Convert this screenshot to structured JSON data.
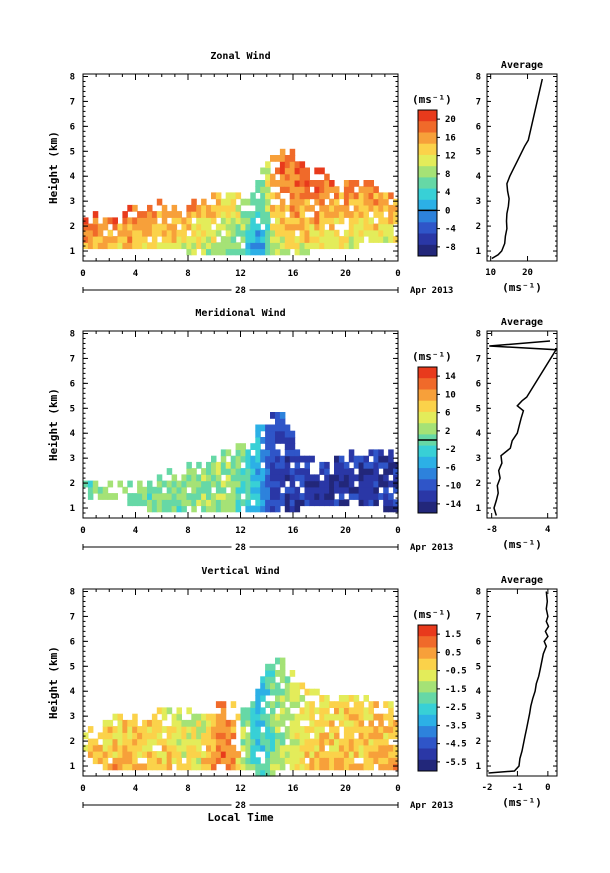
{
  "chart_data": [
    {
      "type": "heatmap",
      "title": "Zonal Wind",
      "xlabel": "",
      "ylabel": "Height (km)",
      "x_ticks": [
        "0",
        "4",
        "8",
        "12",
        "16",
        "20",
        "0"
      ],
      "xlim": [
        0,
        24
      ],
      "ylim": [
        0.6,
        8.1
      ],
      "y_ticks": [
        "1",
        "2",
        "3",
        "4",
        "5",
        "6",
        "7",
        "8"
      ],
      "date_label": "28",
      "month_label": "Apr 2013",
      "colorbar": {
        "unit": "(ms⁻¹)",
        "tick_labels": [
          "20",
          "16",
          "12",
          "8",
          "4",
          "0",
          "-4",
          "-8"
        ],
        "range": [
          -10,
          22
        ],
        "zero_line": 0,
        "colors": [
          "#e83a1c",
          "#f06a2a",
          "#f7a03a",
          "#fbd24a",
          "#e3ec5a",
          "#a5e276",
          "#66d8a6",
          "#38d0d6",
          "#2cb0e6",
          "#2d82dc",
          "#2f55c8",
          "#2a37a6",
          "#22277a"
        ]
      },
      "field": {
        "x_bins": 64,
        "y_bins": 30,
        "coverage": [
          [
            3.2,
            1.2,
            2.6
          ],
          [
            5.0,
            1.2,
            3.0
          ],
          [
            8.0,
            1.0,
            3.0
          ],
          [
            10.5,
            0.9,
            3.6
          ],
          [
            12.5,
            0.9,
            3.0
          ],
          [
            14.2,
            0.9,
            4.8
          ],
          [
            15.6,
            1.0,
            5.2
          ],
          [
            17.5,
            1.0,
            4.4
          ],
          [
            19.5,
            1.2,
            3.8
          ],
          [
            21.5,
            1.3,
            3.9
          ],
          [
            23.8,
            1.4,
            3.2
          ]
        ],
        "value_profile": [
          [
            0.6,
            8
          ],
          [
            1.5,
            12
          ],
          [
            2.5,
            15
          ],
          [
            3.5,
            17
          ],
          [
            4.5,
            18
          ],
          [
            5.5,
            19
          ]
        ],
        "time_anomaly": [
          [
            0,
            4
          ],
          [
            4,
            3
          ],
          [
            8,
            0
          ],
          [
            10,
            -1
          ],
          [
            12,
            -5
          ],
          [
            13.5,
            -12
          ],
          [
            14.5,
            -2
          ],
          [
            16,
            1
          ],
          [
            20,
            0
          ],
          [
            24,
            -1
          ]
        ]
      },
      "profile": {
        "title": "Average",
        "xlabel": "(ms⁻¹)",
        "x_ticks": [
          "10",
          "20"
        ],
        "xlim": [
          9,
          28
        ],
        "height": [
          0.7,
          0.85,
          1.0,
          1.3,
          1.6,
          1.9,
          2.2,
          2.5,
          2.8,
          3.1,
          3.4,
          3.7,
          4.0,
          4.3,
          4.6,
          4.9,
          5.2,
          5.45,
          7.9
        ],
        "value": [
          10.3,
          12.0,
          13.0,
          13.8,
          14.0,
          14.4,
          14.3,
          14.4,
          14.8,
          15.0,
          14.6,
          14.4,
          15.2,
          16.2,
          17.2,
          18.2,
          19.2,
          20.2,
          24.0
        ]
      }
    },
    {
      "type": "heatmap",
      "title": "Meridional Wind",
      "xlabel": "",
      "ylabel": "Height (km)",
      "x_ticks": [
        "0",
        "4",
        "8",
        "12",
        "16",
        "20",
        "0"
      ],
      "xlim": [
        0,
        24
      ],
      "ylim": [
        0.6,
        8.1
      ],
      "y_ticks": [
        "1",
        "2",
        "3",
        "4",
        "5",
        "6",
        "7",
        "8"
      ],
      "date_label": "28",
      "month_label": "Apr 2013",
      "colorbar": {
        "unit": "(ms⁻¹)",
        "tick_labels": [
          "14",
          "10",
          "6",
          "2",
          "-2",
          "-6",
          "-10",
          "-14"
        ],
        "range": [
          -16,
          16
        ],
        "zero_line": 0,
        "colors": [
          "#e83a1c",
          "#f06a2a",
          "#f7a03a",
          "#fbd24a",
          "#e3ec5a",
          "#a5e276",
          "#66d8a6",
          "#38d0d6",
          "#2cb0e6",
          "#2d82dc",
          "#2f55c8",
          "#2a37a6",
          "#22277a"
        ]
      },
      "field": {
        "x_bins": 64,
        "y_bins": 30,
        "coverage": [
          [
            3.2,
            1.3,
            2.0
          ],
          [
            5.0,
            1.0,
            2.0
          ],
          [
            7.0,
            1.0,
            2.6
          ],
          [
            8.5,
            1.0,
            3.0
          ],
          [
            10.0,
            0.9,
            3.2
          ],
          [
            12.0,
            0.9,
            3.5
          ],
          [
            13.8,
            1.0,
            4.6
          ],
          [
            15.2,
            1.0,
            5.0
          ],
          [
            16.8,
            1.0,
            3.2
          ],
          [
            18.5,
            1.2,
            2.8
          ],
          [
            20.5,
            1.1,
            3.3
          ],
          [
            23.8,
            1.0,
            3.2
          ]
        ],
        "value_profile": [
          [
            0.6,
            2
          ],
          [
            3.0,
            3
          ],
          [
            5.5,
            4
          ]
        ],
        "time_anomaly": [
          [
            0,
            -2
          ],
          [
            8,
            -1
          ],
          [
            11,
            0
          ],
          [
            13,
            -6
          ],
          [
            14.5,
            -14
          ],
          [
            17,
            -15
          ],
          [
            24,
            -15
          ]
        ]
      },
      "profile": {
        "title": "Average",
        "xlabel": "(ms⁻¹)",
        "x_ticks": [
          "-8",
          "4"
        ],
        "xlim": [
          -9,
          6
        ],
        "height": [
          0.7,
          1.0,
          1.3,
          1.6,
          1.9,
          2.2,
          2.5,
          2.8,
          3.1,
          3.4,
          3.7,
          4.0,
          4.3,
          4.6,
          4.9,
          5.1,
          5.3,
          5.45,
          7.35,
          7.5,
          7.7
        ],
        "value": [
          -7.0,
          -7.5,
          -7.0,
          -6.6,
          -6.8,
          -6.2,
          -6.5,
          -5.8,
          -6.0,
          -4.0,
          -3.6,
          -2.5,
          -2.1,
          -1.7,
          -1.2,
          -2.5,
          -1.5,
          -0.5,
          5.8,
          -8.5,
          4.5
        ]
      }
    },
    {
      "type": "heatmap",
      "title": "Vertical Wind",
      "xlabel": "Local Time",
      "ylabel": "Height (km)",
      "x_ticks": [
        "0",
        "4",
        "8",
        "12",
        "16",
        "20",
        "0"
      ],
      "xlim": [
        0,
        24
      ],
      "ylim": [
        0.6,
        8.1
      ],
      "y_ticks": [
        "1",
        "2",
        "3",
        "4",
        "5",
        "6",
        "7",
        "8"
      ],
      "date_label": "28",
      "month_label": "Apr 2013",
      "colorbar": {
        "unit": "(ms⁻¹)",
        "tick_labels": [
          "1.5",
          "0.5",
          "-0.5",
          "-1.5",
          "-2.5",
          "-3.5",
          "-4.5",
          "-5.5"
        ],
        "range": [
          -6,
          2
        ],
        "zero_line": null,
        "colors": [
          "#e83a1c",
          "#f06a2a",
          "#f7a03a",
          "#fbd24a",
          "#e3ec5a",
          "#a5e276",
          "#66d8a6",
          "#38d0d6",
          "#2cb0e6",
          "#2d82dc",
          "#2f55c8",
          "#2a37a6",
          "#22277a"
        ]
      },
      "field": {
        "x_bins": 64,
        "y_bins": 30,
        "coverage": [
          [
            0.0,
            1.6,
            2.2
          ],
          [
            2.0,
            0.9,
            3.0
          ],
          [
            6.0,
            0.9,
            3.2
          ],
          [
            9.0,
            0.9,
            3.4
          ],
          [
            11.0,
            0.9,
            3.6
          ],
          [
            12.5,
            0.9,
            3.3
          ],
          [
            13.5,
            0.7,
            4.8
          ],
          [
            15.2,
            0.8,
            5.3
          ],
          [
            17.0,
            0.9,
            4.0
          ],
          [
            21.0,
            0.9,
            3.8
          ],
          [
            24.0,
            0.9,
            3.4
          ]
        ],
        "value_profile": [
          [
            0.6,
            0.2
          ],
          [
            2.0,
            -0.4
          ],
          [
            4.0,
            -0.6
          ],
          [
            5.5,
            -0.5
          ]
        ],
        "time_anomaly": [
          [
            0,
            0.3
          ],
          [
            6,
            0
          ],
          [
            9,
            -0.5
          ],
          [
            11,
            1.4
          ],
          [
            12.2,
            -0.8
          ],
          [
            13.5,
            -2.5
          ],
          [
            15,
            -1.0
          ],
          [
            17,
            0
          ],
          [
            22,
            0.4
          ],
          [
            24,
            0.4
          ]
        ]
      },
      "profile": {
        "title": "Average",
        "xlabel": "(ms⁻¹)",
        "x_ticks": [
          "-2",
          "-1",
          "0"
        ],
        "xlim": [
          -2,
          0.3
        ],
        "height": [
          0.72,
          0.8,
          1.0,
          1.3,
          1.6,
          1.9,
          2.2,
          2.5,
          2.8,
          3.1,
          3.4,
          3.7,
          4.0,
          4.3,
          4.6,
          4.9,
          5.2,
          5.5,
          5.8,
          6.0,
          6.2,
          6.4,
          6.6,
          6.8,
          7.0,
          7.3,
          7.6,
          8.0
        ],
        "value": [
          -1.95,
          -1.1,
          -0.95,
          -0.92,
          -0.85,
          -0.8,
          -0.75,
          -0.7,
          -0.65,
          -0.6,
          -0.56,
          -0.5,
          -0.42,
          -0.38,
          -0.3,
          -0.25,
          -0.2,
          -0.15,
          -0.05,
          -0.12,
          0.0,
          -0.08,
          0.02,
          -0.05,
          0.0,
          -0.05,
          -0.02,
          -0.05
        ]
      }
    }
  ]
}
